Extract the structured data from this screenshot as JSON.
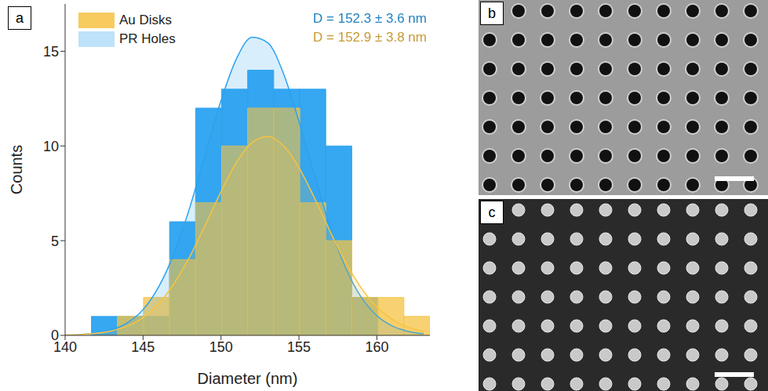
{
  "chart_data": {
    "type": "histogram",
    "panel_label": "a",
    "x_label": "Diameter (nm)",
    "y_label": "Counts",
    "bins": [
      141.69,
      143.36,
      145.03,
      146.7,
      148.37,
      150.04,
      151.71,
      153.38,
      155.05,
      156.72,
      158.39,
      160.06,
      161.73,
      163.4
    ],
    "xlim": [
      140,
      163.4
    ],
    "xticks": [
      140,
      145,
      150,
      155,
      160
    ],
    "ylim": [
      0,
      17.5
    ],
    "yticks": [
      0,
      5,
      10,
      15
    ],
    "legend": "upper left",
    "fit_x": [
      140,
      141,
      142,
      143,
      144,
      145,
      146,
      147,
      148,
      149,
      150,
      151,
      152,
      153,
      154,
      155,
      156,
      157,
      158,
      159,
      160,
      161,
      162,
      163
    ],
    "series": [
      {
        "name": "Au Disks",
        "color": "#f6c343",
        "counts": [
          0,
          1,
          2,
          4,
          7,
          10,
          12,
          12,
          7,
          5,
          2,
          2,
          1
        ],
        "fit": [
          0.017,
          0.045,
          0.11,
          0.24,
          0.49,
          0.94,
          1.67,
          2.75,
          4.16,
          5.84,
          7.59,
          9.14,
          10.18,
          10.5,
          10.02,
          8.86,
          7.25,
          5.49,
          3.85,
          2.5,
          1.5,
          0.84,
          0.43,
          0.21
        ],
        "annotation": "D = 152.9 ± 3.8 nm"
      },
      {
        "name": "PR Holes",
        "color": "#2ba2f0",
        "counts": [
          1,
          1,
          1,
          6,
          12,
          13,
          14,
          13,
          13,
          10,
          2,
          0,
          0
        ],
        "fit": [
          0.015,
          0.045,
          0.12,
          0.3,
          0.67,
          1.36,
          2.56,
          4.35,
          6.76,
          9.59,
          12.39,
          14.62,
          15.74,
          15.45,
          13.84,
          11.3,
          8.43,
          5.73,
          3.56,
          2.01,
          1.04,
          0.49,
          0.21,
          0.08
        ],
        "annotation": "D = 152.3 ± 3.6 nm"
      }
    ]
  },
  "images": [
    {
      "label": "b"
    },
    {
      "label": "c"
    }
  ]
}
